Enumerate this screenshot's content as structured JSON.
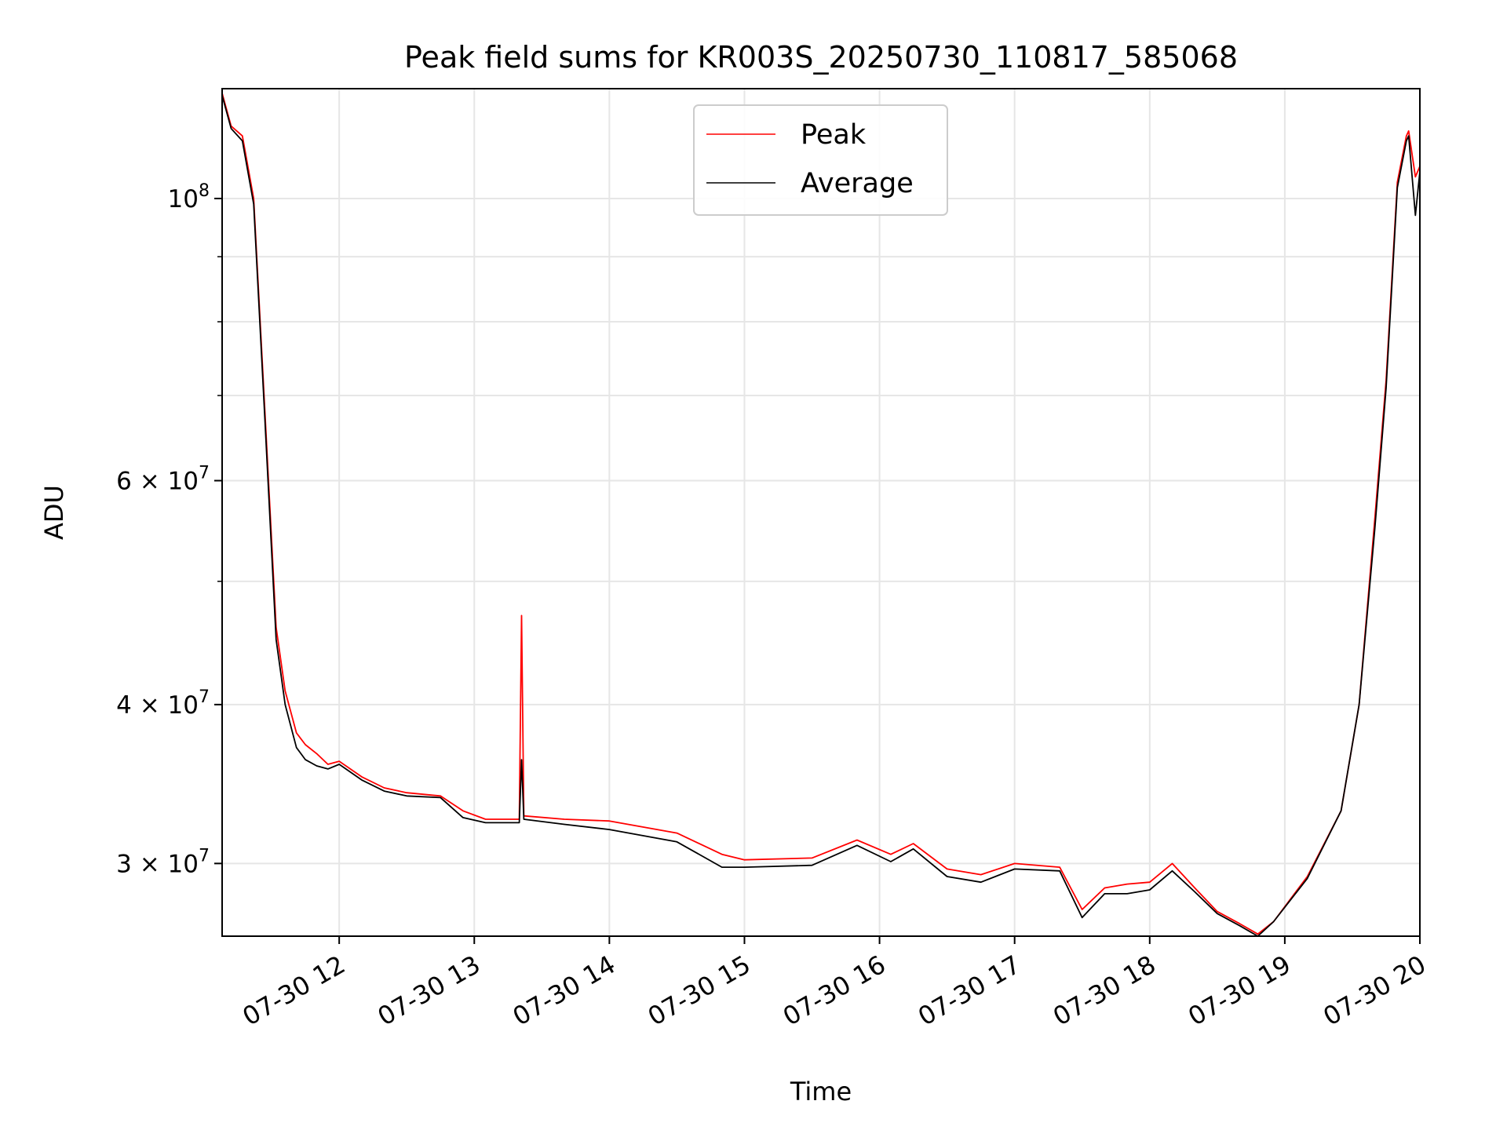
{
  "chart_data": {
    "type": "line",
    "title": "Peak field sums for KR003S_20250730_110817_585068",
    "xlabel": "Time",
    "ylabel": "ADU",
    "yscale": "log",
    "grid": true,
    "legend_position": "top-center",
    "xlim": [
      "2025-07-30 11:08",
      "2025-07-30 20:00"
    ],
    "ylim": [
      26300000,
      122000000
    ],
    "x_ticks": [
      {
        "value": "2025-07-30 12:00",
        "label": "07-30 12"
      },
      {
        "value": "2025-07-30 13:00",
        "label": "07-30 13"
      },
      {
        "value": "2025-07-30 14:00",
        "label": "07-30 14"
      },
      {
        "value": "2025-07-30 15:00",
        "label": "07-30 15"
      },
      {
        "value": "2025-07-30 16:00",
        "label": "07-30 16"
      },
      {
        "value": "2025-07-30 17:00",
        "label": "07-30 17"
      },
      {
        "value": "2025-07-30 18:00",
        "label": "07-30 18"
      },
      {
        "value": "2025-07-30 19:00",
        "label": "07-30 19"
      },
      {
        "value": "2025-07-30 20:00",
        "label": "07-30 20"
      }
    ],
    "y_ticks": [
      {
        "value": 30000000,
        "base": "3 × 10",
        "exp": "7"
      },
      {
        "value": 40000000,
        "base": "4 × 10",
        "exp": "7"
      },
      {
        "value": 60000000,
        "base": "6 × 10",
        "exp": "7"
      },
      {
        "value": 100000000,
        "base": "10",
        "exp": "8"
      }
    ],
    "y_minor_ticks": [
      50000000,
      70000000,
      80000000,
      90000000
    ],
    "series": [
      {
        "name": "Peak",
        "color": "#ff0000",
        "x": [
          "2025-07-30 11:08",
          "2025-07-30 11:12",
          "2025-07-30 11:17",
          "2025-07-30 11:22",
          "2025-07-30 11:27",
          "2025-07-30 11:32",
          "2025-07-30 11:36",
          "2025-07-30 11:41",
          "2025-07-30 11:45",
          "2025-07-30 11:50",
          "2025-07-30 11:55",
          "2025-07-30 12:00",
          "2025-07-30 12:10",
          "2025-07-30 12:20",
          "2025-07-30 12:30",
          "2025-07-30 12:45",
          "2025-07-30 12:55",
          "2025-07-30 13:05",
          "2025-07-30 13:20",
          "2025-07-30 13:21",
          "2025-07-30 13:22",
          "2025-07-30 13:40",
          "2025-07-30 14:00",
          "2025-07-30 14:30",
          "2025-07-30 14:50",
          "2025-07-30 15:00",
          "2025-07-30 15:30",
          "2025-07-30 15:50",
          "2025-07-30 16:05",
          "2025-07-30 16:15",
          "2025-07-30 16:30",
          "2025-07-30 16:45",
          "2025-07-30 17:00",
          "2025-07-30 17:20",
          "2025-07-30 17:30",
          "2025-07-30 17:40",
          "2025-07-30 17:50",
          "2025-07-30 18:00",
          "2025-07-30 18:10",
          "2025-07-30 18:20",
          "2025-07-30 18:30",
          "2025-07-30 18:40",
          "2025-07-30 18:48",
          "2025-07-30 18:55",
          "2025-07-30 19:10",
          "2025-07-30 19:25",
          "2025-07-30 19:33",
          "2025-07-30 19:40",
          "2025-07-30 19:45",
          "2025-07-30 19:50",
          "2025-07-30 19:54",
          "2025-07-30 19:55",
          "2025-07-30 19:58",
          "2025-07-30 20:00"
        ],
        "y": [
          121000000,
          114000000,
          112000000,
          100000000,
          68000000,
          46000000,
          41000000,
          38000000,
          37200000,
          36600000,
          35900000,
          36100000,
          35100000,
          34400000,
          34100000,
          33900000,
          33000000,
          32500000,
          32500000,
          47000000,
          32700000,
          32500000,
          32400000,
          31700000,
          30500000,
          30200000,
          30300000,
          31300000,
          30500000,
          31100000,
          29700000,
          29400000,
          30000000,
          29800000,
          27600000,
          28700000,
          28900000,
          29000000,
          30000000,
          28700000,
          27500000,
          26900000,
          26400000,
          27000000,
          29300000,
          33000000,
          40000000,
          56000000,
          72000000,
          103000000,
          112000000,
          113000000,
          104000000,
          106000000
        ]
      },
      {
        "name": "Average",
        "color": "#000000",
        "x": [
          "2025-07-30 11:08",
          "2025-07-30 11:12",
          "2025-07-30 11:17",
          "2025-07-30 11:22",
          "2025-07-30 11:27",
          "2025-07-30 11:32",
          "2025-07-30 11:36",
          "2025-07-30 11:41",
          "2025-07-30 11:45",
          "2025-07-30 11:50",
          "2025-07-30 11:55",
          "2025-07-30 12:00",
          "2025-07-30 12:10",
          "2025-07-30 12:20",
          "2025-07-30 12:30",
          "2025-07-30 12:45",
          "2025-07-30 12:55",
          "2025-07-30 13:05",
          "2025-07-30 13:20",
          "2025-07-30 13:21",
          "2025-07-30 13:22",
          "2025-07-30 13:40",
          "2025-07-30 14:00",
          "2025-07-30 14:30",
          "2025-07-30 14:50",
          "2025-07-30 15:00",
          "2025-07-30 15:30",
          "2025-07-30 15:50",
          "2025-07-30 16:05",
          "2025-07-30 16:15",
          "2025-07-30 16:30",
          "2025-07-30 16:45",
          "2025-07-30 17:00",
          "2025-07-30 17:20",
          "2025-07-30 17:30",
          "2025-07-30 17:40",
          "2025-07-30 17:50",
          "2025-07-30 18:00",
          "2025-07-30 18:10",
          "2025-07-30 18:20",
          "2025-07-30 18:30",
          "2025-07-30 18:40",
          "2025-07-30 18:48",
          "2025-07-30 18:55",
          "2025-07-30 19:10",
          "2025-07-30 19:25",
          "2025-07-30 19:33",
          "2025-07-30 19:40",
          "2025-07-30 19:45",
          "2025-07-30 19:50",
          "2025-07-30 19:54",
          "2025-07-30 19:55",
          "2025-07-30 19:58",
          "2025-07-30 20:00"
        ],
        "y": [
          120500000,
          113500000,
          111000000,
          99000000,
          67000000,
          45000000,
          40000000,
          37000000,
          36200000,
          35800000,
          35600000,
          35900000,
          34900000,
          34200000,
          33900000,
          33800000,
          32600000,
          32300000,
          32300000,
          36200000,
          32500000,
          32200000,
          31900000,
          31200000,
          29800000,
          29800000,
          29900000,
          31000000,
          30100000,
          30800000,
          29300000,
          29000000,
          29700000,
          29600000,
          27200000,
          28400000,
          28400000,
          28600000,
          29600000,
          28500000,
          27400000,
          26800000,
          26300000,
          27000000,
          29200000,
          33000000,
          40000000,
          55000000,
          71000000,
          102000000,
          111000000,
          112000000,
          97000000,
          105000000
        ]
      }
    ]
  }
}
